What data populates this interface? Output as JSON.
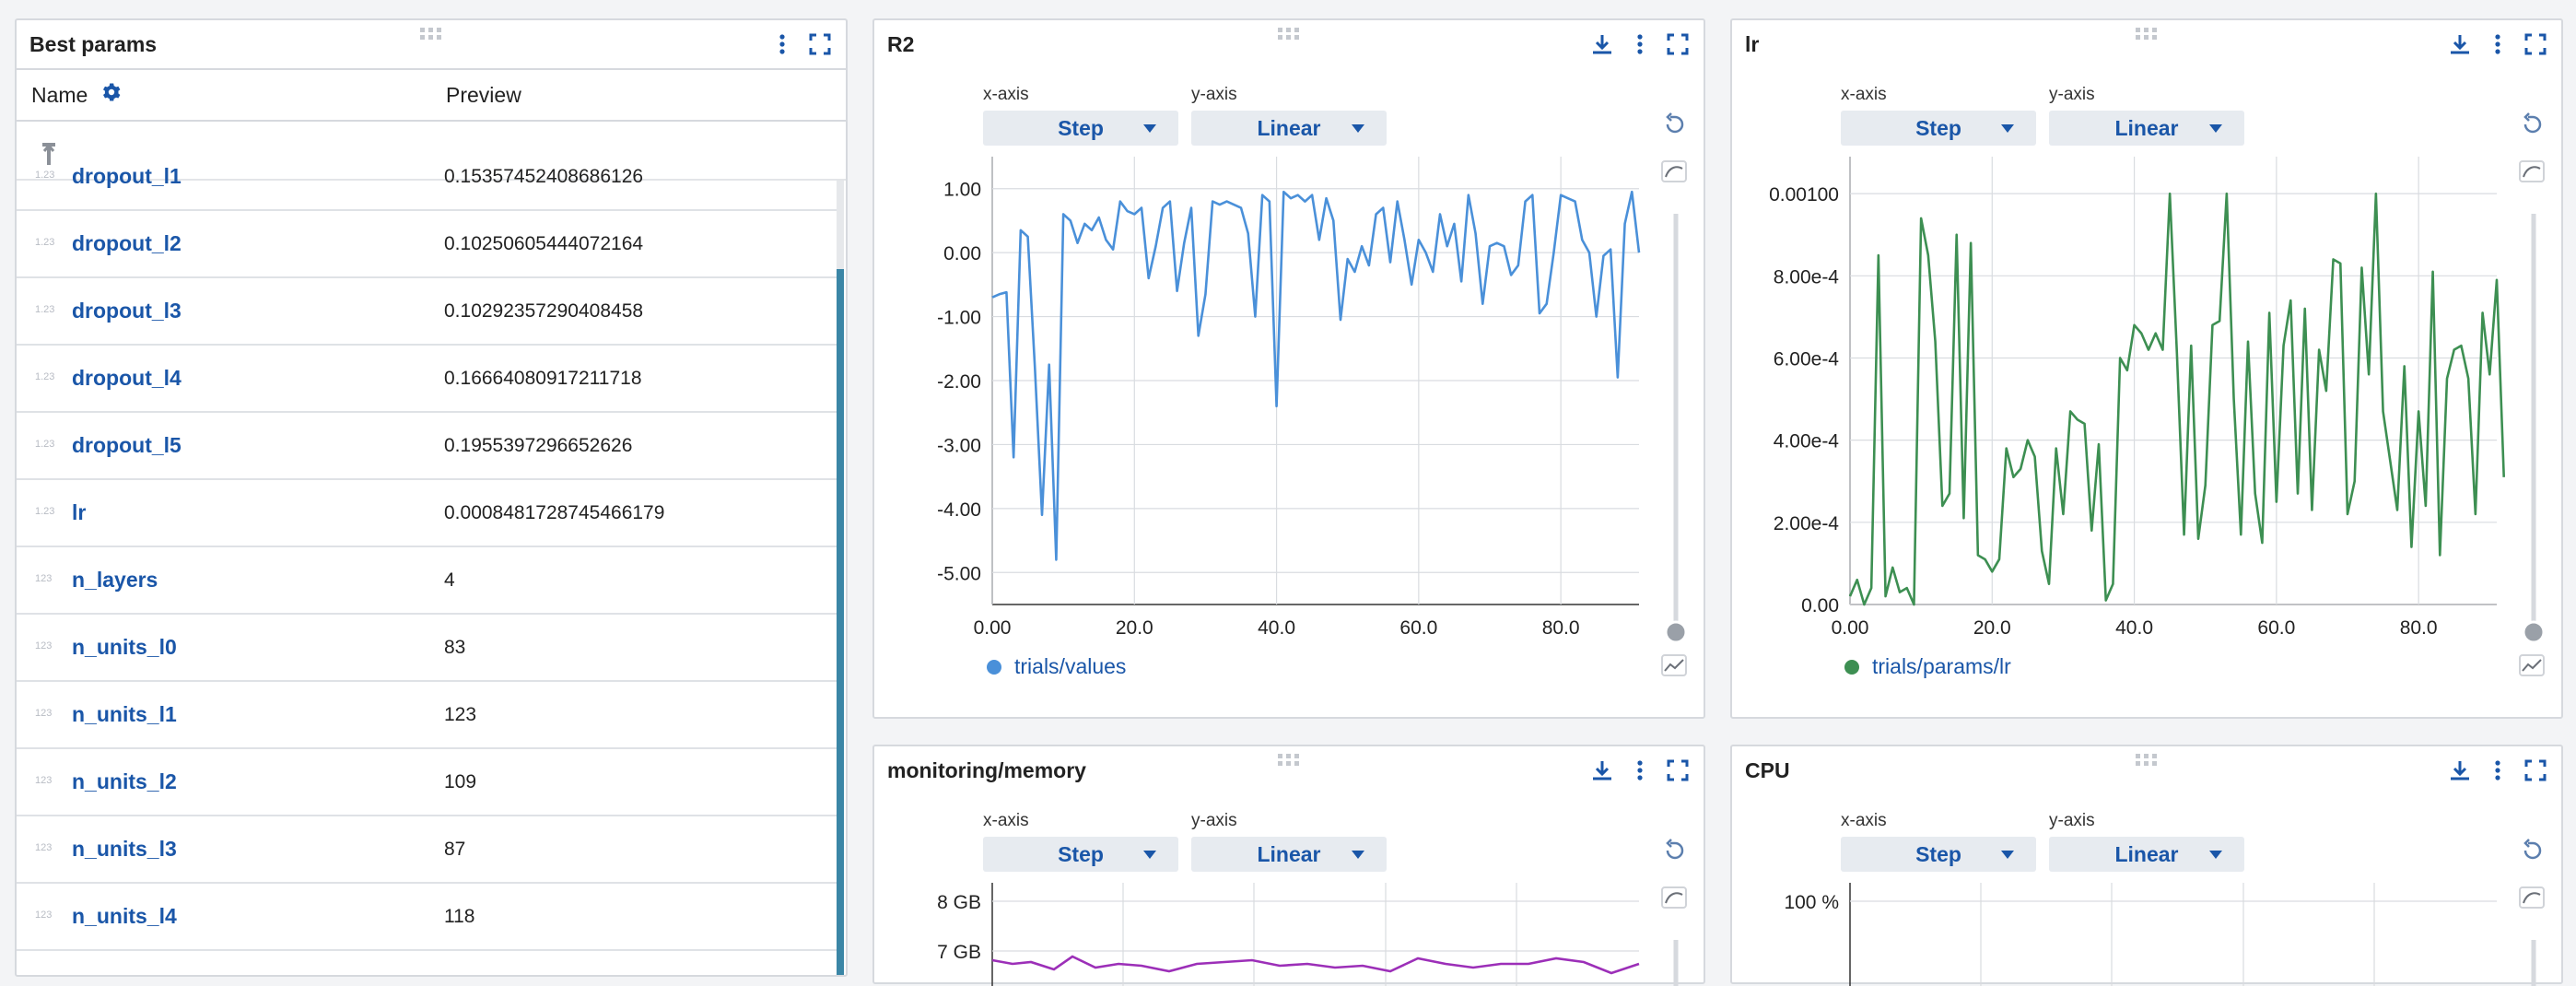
{
  "best_params": {
    "title": "Best params",
    "col_name": "Name",
    "col_preview": "Preview",
    "type_badge": "1.23",
    "int_badge": "123",
    "rows": [
      {
        "name": "dropout_l1",
        "value": "0.15357452408686126",
        "type": "float"
      },
      {
        "name": "dropout_l2",
        "value": "0.10250605444072164",
        "type": "float"
      },
      {
        "name": "dropout_l3",
        "value": "0.10292357290408458",
        "type": "float"
      },
      {
        "name": "dropout_l4",
        "value": "0.16664080917211718",
        "type": "float"
      },
      {
        "name": "dropout_l5",
        "value": "0.1955397296652626",
        "type": "float"
      },
      {
        "name": "lr",
        "value": "0.0008481728745466179",
        "type": "float"
      },
      {
        "name": "n_layers",
        "value": "4",
        "type": "int"
      },
      {
        "name": "n_units_l0",
        "value": "83",
        "type": "int"
      },
      {
        "name": "n_units_l1",
        "value": "123",
        "type": "int"
      },
      {
        "name": "n_units_l2",
        "value": "109",
        "type": "int"
      },
      {
        "name": "n_units_l3",
        "value": "87",
        "type": "int"
      },
      {
        "name": "n_units_l4",
        "value": "118",
        "type": "int"
      }
    ]
  },
  "controls": {
    "xaxis_label": "x-axis",
    "yaxis_label": "y-axis",
    "xaxis_value": "Step",
    "yaxis_value": "Linear"
  },
  "charts": {
    "r2": {
      "title": "R2",
      "legend": "trials/values",
      "color": "#4a90d9"
    },
    "lr": {
      "title": "lr",
      "legend": "trials/params/lr",
      "color": "#3d8f52"
    },
    "memory": {
      "title": "monitoring/memory",
      "color": "#9c2fb8"
    },
    "cpu": {
      "title": "CPU"
    }
  },
  "chart_data": [
    {
      "type": "line",
      "title": "R2",
      "xlim": [
        0,
        91
      ],
      "ylim": [
        -5.5,
        1.5
      ],
      "yticks": [
        "1.00",
        "0.00",
        "-1.00",
        "-2.00",
        "-3.00",
        "-4.00",
        "-5.00"
      ],
      "xticks": [
        "0.00",
        "20.0",
        "40.0",
        "60.0",
        "80.0"
      ],
      "series": [
        {
          "name": "trials/values",
          "color": "#4a90d9",
          "values": [
            -0.7,
            -0.65,
            -0.62,
            -3.2,
            0.35,
            0.25,
            -1.8,
            -4.1,
            -1.75,
            -4.8,
            0.6,
            0.5,
            0.15,
            0.45,
            0.35,
            0.55,
            0.2,
            0.05,
            0.8,
            0.65,
            0.6,
            0.7,
            -0.4,
            0.1,
            0.7,
            0.8,
            -0.6,
            0.15,
            0.7,
            -1.3,
            -0.65,
            0.8,
            0.75,
            0.8,
            0.75,
            0.7,
            0.3,
            -1.0,
            0.9,
            0.8,
            -2.4,
            0.95,
            0.85,
            0.9,
            0.8,
            0.9,
            0.2,
            0.85,
            0.5,
            -1.05,
            -0.1,
            -0.3,
            0.1,
            -0.2,
            0.6,
            0.7,
            -0.15,
            0.8,
            0.2,
            -0.5,
            0.2,
            0.0,
            -0.3,
            0.6,
            0.1,
            0.45,
            -0.45,
            0.9,
            0.3,
            -0.8,
            0.1,
            0.15,
            0.1,
            -0.35,
            -0.2,
            0.8,
            0.9,
            -0.95,
            -0.8,
            0.0,
            0.9,
            0.85,
            0.8,
            0.2,
            0.0,
            -1.0,
            -0.05,
            0.05,
            -1.95,
            0.45,
            0.95,
            0.0
          ]
        }
      ]
    },
    {
      "type": "line",
      "title": "lr",
      "xlim": [
        0,
        91
      ],
      "ylim": [
        0,
        0.00109
      ],
      "yticks": [
        "0.00100",
        "8.00e-4",
        "6.00e-4",
        "4.00e-4",
        "2.00e-4",
        "0.00"
      ],
      "xticks": [
        "0.00",
        "20.0",
        "40.0",
        "60.0",
        "80.0"
      ],
      "series": [
        {
          "name": "trials/params/lr",
          "color": "#3d8f52",
          "values": [
            2e-05,
            6e-05,
            0.0,
            4e-05,
            0.00085,
            2e-05,
            9e-05,
            3e-05,
            4e-05,
            0.0,
            0.00094,
            0.00085,
            0.00064,
            0.00024,
            0.00027,
            0.0009,
            0.00021,
            0.00088,
            0.00012,
            0.00011,
            8e-05,
            0.00011,
            0.00038,
            0.00031,
            0.00033,
            0.0004,
            0.00036,
            0.00013,
            5e-05,
            0.00038,
            0.00022,
            0.00047,
            0.00045,
            0.00044,
            0.00018,
            0.00039,
            1e-05,
            5e-05,
            0.0006,
            0.00057,
            0.00068,
            0.00066,
            0.00062,
            0.00066,
            0.00062,
            0.001,
            0.00061,
            0.00017,
            0.00063,
            0.00016,
            0.00029,
            0.00068,
            0.00069,
            0.001,
            0.0005,
            0.00017,
            0.00064,
            0.00027,
            0.00015,
            0.00071,
            0.00025,
            0.00063,
            0.00074,
            0.00027,
            0.00072,
            0.00023,
            0.00062,
            0.00052,
            0.00084,
            0.00083,
            0.00022,
            0.0003,
            0.00082,
            0.00056,
            0.001,
            0.00047,
            0.00035,
            0.00023,
            0.00058,
            0.00014,
            0.00047,
            0.00024,
            0.00081,
            0.00012,
            0.00055,
            0.00062,
            0.00063,
            0.00055,
            0.00022,
            0.00071,
            0.00056,
            0.00079,
            0.00031
          ]
        }
      ]
    },
    {
      "type": "line",
      "title": "monitoring/memory",
      "yticks": [
        "8 GB",
        "7 GB"
      ],
      "series": [
        {
          "color": "#9c2fb8"
        }
      ]
    },
    {
      "type": "line",
      "title": "CPU",
      "yticks": [
        "100 %"
      ]
    }
  ]
}
